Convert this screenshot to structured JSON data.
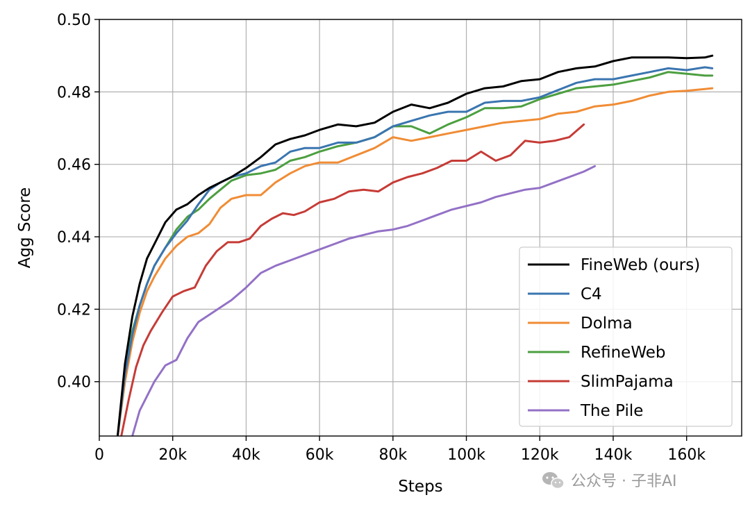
{
  "chart_data": {
    "type": "line",
    "xlabel": "Steps",
    "ylabel": "Agg Score",
    "xlim": [
      0,
      175000
    ],
    "ylim": [
      0.385,
      0.5
    ],
    "x_ticks": [
      0,
      20000,
      40000,
      60000,
      80000,
      100000,
      120000,
      140000,
      160000
    ],
    "x_tick_labels": [
      "0",
      "20k",
      "40k",
      "60k",
      "80k",
      "100k",
      "120k",
      "140k",
      "160k"
    ],
    "y_ticks": [
      0.4,
      0.42,
      0.44,
      0.46,
      0.48,
      0.5
    ],
    "y_tick_labels": [
      "0.40",
      "0.42",
      "0.44",
      "0.46",
      "0.48",
      "0.50"
    ],
    "grid": true,
    "legend_position": "lower-right",
    "series": [
      {
        "name": "FineWeb (ours)",
        "color": "#000000",
        "points": [
          [
            5000,
            0.385
          ],
          [
            7000,
            0.405
          ],
          [
            9000,
            0.418
          ],
          [
            11000,
            0.427
          ],
          [
            13000,
            0.434
          ],
          [
            15000,
            0.438
          ],
          [
            18000,
            0.444
          ],
          [
            21000,
            0.4475
          ],
          [
            24000,
            0.449
          ],
          [
            27000,
            0.4515
          ],
          [
            30000,
            0.4535
          ],
          [
            33000,
            0.455
          ],
          [
            36000,
            0.4565
          ],
          [
            40000,
            0.459
          ],
          [
            44000,
            0.462
          ],
          [
            48000,
            0.4655
          ],
          [
            52000,
            0.467
          ],
          [
            56000,
            0.468
          ],
          [
            60000,
            0.4695
          ],
          [
            65000,
            0.471
          ],
          [
            70000,
            0.4705
          ],
          [
            75000,
            0.4715
          ],
          [
            80000,
            0.4745
          ],
          [
            85000,
            0.4765
          ],
          [
            90000,
            0.4755
          ],
          [
            95000,
            0.477
          ],
          [
            100000,
            0.4795
          ],
          [
            105000,
            0.481
          ],
          [
            110000,
            0.4815
          ],
          [
            115000,
            0.483
          ],
          [
            120000,
            0.4835
          ],
          [
            125000,
            0.4855
          ],
          [
            130000,
            0.4865
          ],
          [
            135000,
            0.487
          ],
          [
            140000,
            0.4885
          ],
          [
            145000,
            0.4895
          ],
          [
            150000,
            0.4895
          ],
          [
            155000,
            0.4895
          ],
          [
            160000,
            0.4893
          ],
          [
            165000,
            0.4895
          ],
          [
            167000,
            0.49
          ]
        ]
      },
      {
        "name": "C4",
        "color": "#3a75b0",
        "points": [
          [
            5000,
            0.385
          ],
          [
            7000,
            0.402
          ],
          [
            9000,
            0.413
          ],
          [
            11000,
            0.421
          ],
          [
            13000,
            0.427
          ],
          [
            15000,
            0.432
          ],
          [
            18000,
            0.437
          ],
          [
            21000,
            0.441
          ],
          [
            24000,
            0.4445
          ],
          [
            27000,
            0.449
          ],
          [
            30000,
            0.453
          ],
          [
            33000,
            0.455
          ],
          [
            36000,
            0.4565
          ],
          [
            40000,
            0.4575
          ],
          [
            44000,
            0.4595
          ],
          [
            48000,
            0.4605
          ],
          [
            52000,
            0.4635
          ],
          [
            56000,
            0.4645
          ],
          [
            60000,
            0.4645
          ],
          [
            65000,
            0.466
          ],
          [
            70000,
            0.466
          ],
          [
            75000,
            0.4675
          ],
          [
            80000,
            0.4705
          ],
          [
            85000,
            0.472
          ],
          [
            90000,
            0.4735
          ],
          [
            95000,
            0.4745
          ],
          [
            100000,
            0.4745
          ],
          [
            105000,
            0.477
          ],
          [
            110000,
            0.4775
          ],
          [
            115000,
            0.4775
          ],
          [
            120000,
            0.4785
          ],
          [
            125000,
            0.4805
          ],
          [
            130000,
            0.4825
          ],
          [
            135000,
            0.4835
          ],
          [
            140000,
            0.4835
          ],
          [
            145000,
            0.4845
          ],
          [
            150000,
            0.4855
          ],
          [
            155000,
            0.4865
          ],
          [
            160000,
            0.486
          ],
          [
            165000,
            0.4868
          ],
          [
            167000,
            0.4865
          ]
        ]
      },
      {
        "name": "Dolma",
        "color": "#f08c35",
        "points": [
          [
            5000,
            0.385
          ],
          [
            7000,
            0.4
          ],
          [
            9000,
            0.411
          ],
          [
            11000,
            0.419
          ],
          [
            13000,
            0.425
          ],
          [
            15000,
            0.429
          ],
          [
            18000,
            0.434
          ],
          [
            21000,
            0.4375
          ],
          [
            24000,
            0.44
          ],
          [
            27000,
            0.441
          ],
          [
            30000,
            0.4435
          ],
          [
            33000,
            0.448
          ],
          [
            36000,
            0.4505
          ],
          [
            40000,
            0.4515
          ],
          [
            44000,
            0.4515
          ],
          [
            48000,
            0.455
          ],
          [
            52000,
            0.4575
          ],
          [
            56000,
            0.4595
          ],
          [
            60000,
            0.4605
          ],
          [
            65000,
            0.4605
          ],
          [
            70000,
            0.4625
          ],
          [
            75000,
            0.4645
          ],
          [
            80000,
            0.4675
          ],
          [
            85000,
            0.4665
          ],
          [
            90000,
            0.4675
          ],
          [
            95000,
            0.4685
          ],
          [
            100000,
            0.4695
          ],
          [
            105000,
            0.4705
          ],
          [
            110000,
            0.4715
          ],
          [
            115000,
            0.472
          ],
          [
            120000,
            0.4725
          ],
          [
            125000,
            0.474
          ],
          [
            130000,
            0.4745
          ],
          [
            135000,
            0.476
          ],
          [
            140000,
            0.4765
          ],
          [
            145000,
            0.4775
          ],
          [
            150000,
            0.479
          ],
          [
            155000,
            0.48
          ],
          [
            160000,
            0.4803
          ],
          [
            165000,
            0.4808
          ],
          [
            167000,
            0.481
          ]
        ]
      },
      {
        "name": "RefineWeb",
        "color": "#4c9f40",
        "points": [
          [
            5000,
            0.385
          ],
          [
            7000,
            0.403
          ],
          [
            9000,
            0.414
          ],
          [
            11000,
            0.421
          ],
          [
            13000,
            0.427
          ],
          [
            15000,
            0.432
          ],
          [
            18000,
            0.437
          ],
          [
            21000,
            0.442
          ],
          [
            24000,
            0.4455
          ],
          [
            27000,
            0.4475
          ],
          [
            30000,
            0.4505
          ],
          [
            33000,
            0.453
          ],
          [
            36000,
            0.4555
          ],
          [
            40000,
            0.457
          ],
          [
            44000,
            0.4575
          ],
          [
            48000,
            0.4585
          ],
          [
            52000,
            0.461
          ],
          [
            56000,
            0.462
          ],
          [
            60000,
            0.4635
          ],
          [
            65000,
            0.465
          ],
          [
            70000,
            0.466
          ],
          [
            75000,
            0.4675
          ],
          [
            80000,
            0.4705
          ],
          [
            85000,
            0.4705
          ],
          [
            90000,
            0.4685
          ],
          [
            95000,
            0.471
          ],
          [
            100000,
            0.473
          ],
          [
            105000,
            0.4755
          ],
          [
            110000,
            0.4755
          ],
          [
            115000,
            0.476
          ],
          [
            120000,
            0.478
          ],
          [
            125000,
            0.4795
          ],
          [
            130000,
            0.481
          ],
          [
            135000,
            0.4815
          ],
          [
            140000,
            0.482
          ],
          [
            145000,
            0.483
          ],
          [
            150000,
            0.484
          ],
          [
            155000,
            0.4855
          ],
          [
            160000,
            0.485
          ],
          [
            165000,
            0.4845
          ],
          [
            167000,
            0.4845
          ]
        ]
      },
      {
        "name": "SlimPajama",
        "color": "#c63b36",
        "points": [
          [
            6000,
            0.385
          ],
          [
            8000,
            0.395
          ],
          [
            10000,
            0.404
          ],
          [
            12000,
            0.41
          ],
          [
            14000,
            0.414
          ],
          [
            17000,
            0.419
          ],
          [
            20000,
            0.4235
          ],
          [
            23000,
            0.425
          ],
          [
            26000,
            0.426
          ],
          [
            29000,
            0.432
          ],
          [
            32000,
            0.436
          ],
          [
            35000,
            0.4385
          ],
          [
            38000,
            0.4385
          ],
          [
            41000,
            0.4395
          ],
          [
            44000,
            0.443
          ],
          [
            47000,
            0.445
          ],
          [
            50000,
            0.4465
          ],
          [
            53000,
            0.446
          ],
          [
            56000,
            0.447
          ],
          [
            60000,
            0.4495
          ],
          [
            64000,
            0.4505
          ],
          [
            68000,
            0.4525
          ],
          [
            72000,
            0.453
          ],
          [
            76000,
            0.4525
          ],
          [
            80000,
            0.455
          ],
          [
            84000,
            0.4565
          ],
          [
            88000,
            0.4575
          ],
          [
            92000,
            0.459
          ],
          [
            96000,
            0.461
          ],
          [
            100000,
            0.461
          ],
          [
            104000,
            0.4635
          ],
          [
            108000,
            0.461
          ],
          [
            112000,
            0.4625
          ],
          [
            116000,
            0.4665
          ],
          [
            120000,
            0.466
          ],
          [
            124000,
            0.4665
          ],
          [
            128000,
            0.4675
          ],
          [
            132000,
            0.471
          ]
        ]
      },
      {
        "name": "The Pile",
        "color": "#9371c6",
        "points": [
          [
            9000,
            0.385
          ],
          [
            11000,
            0.392
          ],
          [
            13000,
            0.396
          ],
          [
            15000,
            0.4
          ],
          [
            18000,
            0.4045
          ],
          [
            21000,
            0.406
          ],
          [
            24000,
            0.412
          ],
          [
            27000,
            0.4165
          ],
          [
            30000,
            0.4185
          ],
          [
            33000,
            0.4205
          ],
          [
            36000,
            0.4225
          ],
          [
            40000,
            0.426
          ],
          [
            44000,
            0.43
          ],
          [
            48000,
            0.432
          ],
          [
            52000,
            0.4335
          ],
          [
            56000,
            0.435
          ],
          [
            60000,
            0.4365
          ],
          [
            64000,
            0.438
          ],
          [
            68000,
            0.4395
          ],
          [
            72000,
            0.4405
          ],
          [
            76000,
            0.4415
          ],
          [
            80000,
            0.442
          ],
          [
            84000,
            0.443
          ],
          [
            88000,
            0.4445
          ],
          [
            92000,
            0.446
          ],
          [
            96000,
            0.4475
          ],
          [
            100000,
            0.4485
          ],
          [
            104000,
            0.4495
          ],
          [
            108000,
            0.451
          ],
          [
            112000,
            0.452
          ],
          [
            116000,
            0.453
          ],
          [
            120000,
            0.4535
          ],
          [
            124000,
            0.455
          ],
          [
            128000,
            0.4565
          ],
          [
            132000,
            0.458
          ],
          [
            135000,
            0.4595
          ]
        ]
      }
    ]
  },
  "watermark": {
    "text": "公众号 · 子非AI",
    "icon": "wechat-icon"
  }
}
